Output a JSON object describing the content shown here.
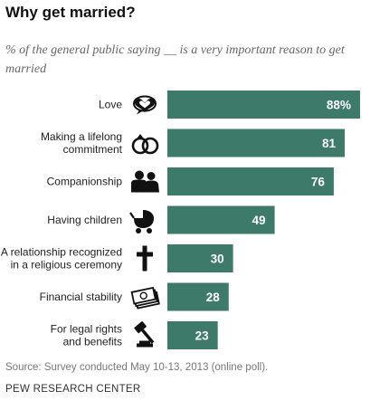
{
  "header": {
    "title": "Why get married?",
    "subtitle": "% of the general public saying __ is a very important reason to get married"
  },
  "footer": {
    "source": "Source: Survey conducted May 10-13, 2013 (online poll).",
    "org": "PEW RESEARCH CENTER"
  },
  "colors": {
    "bar": "#3d7a6a",
    "label": "#ffffff",
    "icon": "#111111"
  },
  "chart_data": {
    "type": "bar",
    "orientation": "horizontal",
    "title": "Why get married?",
    "subtitle": "% of the general public saying __ is a very important reason to get married",
    "xlim": [
      0,
      100
    ],
    "grid": false,
    "legend": "none",
    "categories": [
      {
        "lines": [
          "Love"
        ],
        "icon": "heart-speech-icon"
      },
      {
        "lines": [
          "Making a lifelong",
          "commitment"
        ],
        "icon": "rings-icon"
      },
      {
        "lines": [
          "Companionship"
        ],
        "icon": "couple-icon"
      },
      {
        "lines": [
          "Having children"
        ],
        "icon": "baby-carriage-icon"
      },
      {
        "lines": [
          "A relationship recognized",
          "in a religious ceremony"
        ],
        "icon": "cross-icon"
      },
      {
        "lines": [
          "Financial stability"
        ],
        "icon": "money-icon"
      },
      {
        "lines": [
          "For legal rights",
          "and benefits"
        ],
        "icon": "gavel-icon"
      }
    ],
    "values": [
      88,
      81,
      76,
      49,
      30,
      28,
      23
    ],
    "value_labels": [
      "88%",
      "81",
      "76",
      "49",
      "30",
      "28",
      "23"
    ]
  }
}
